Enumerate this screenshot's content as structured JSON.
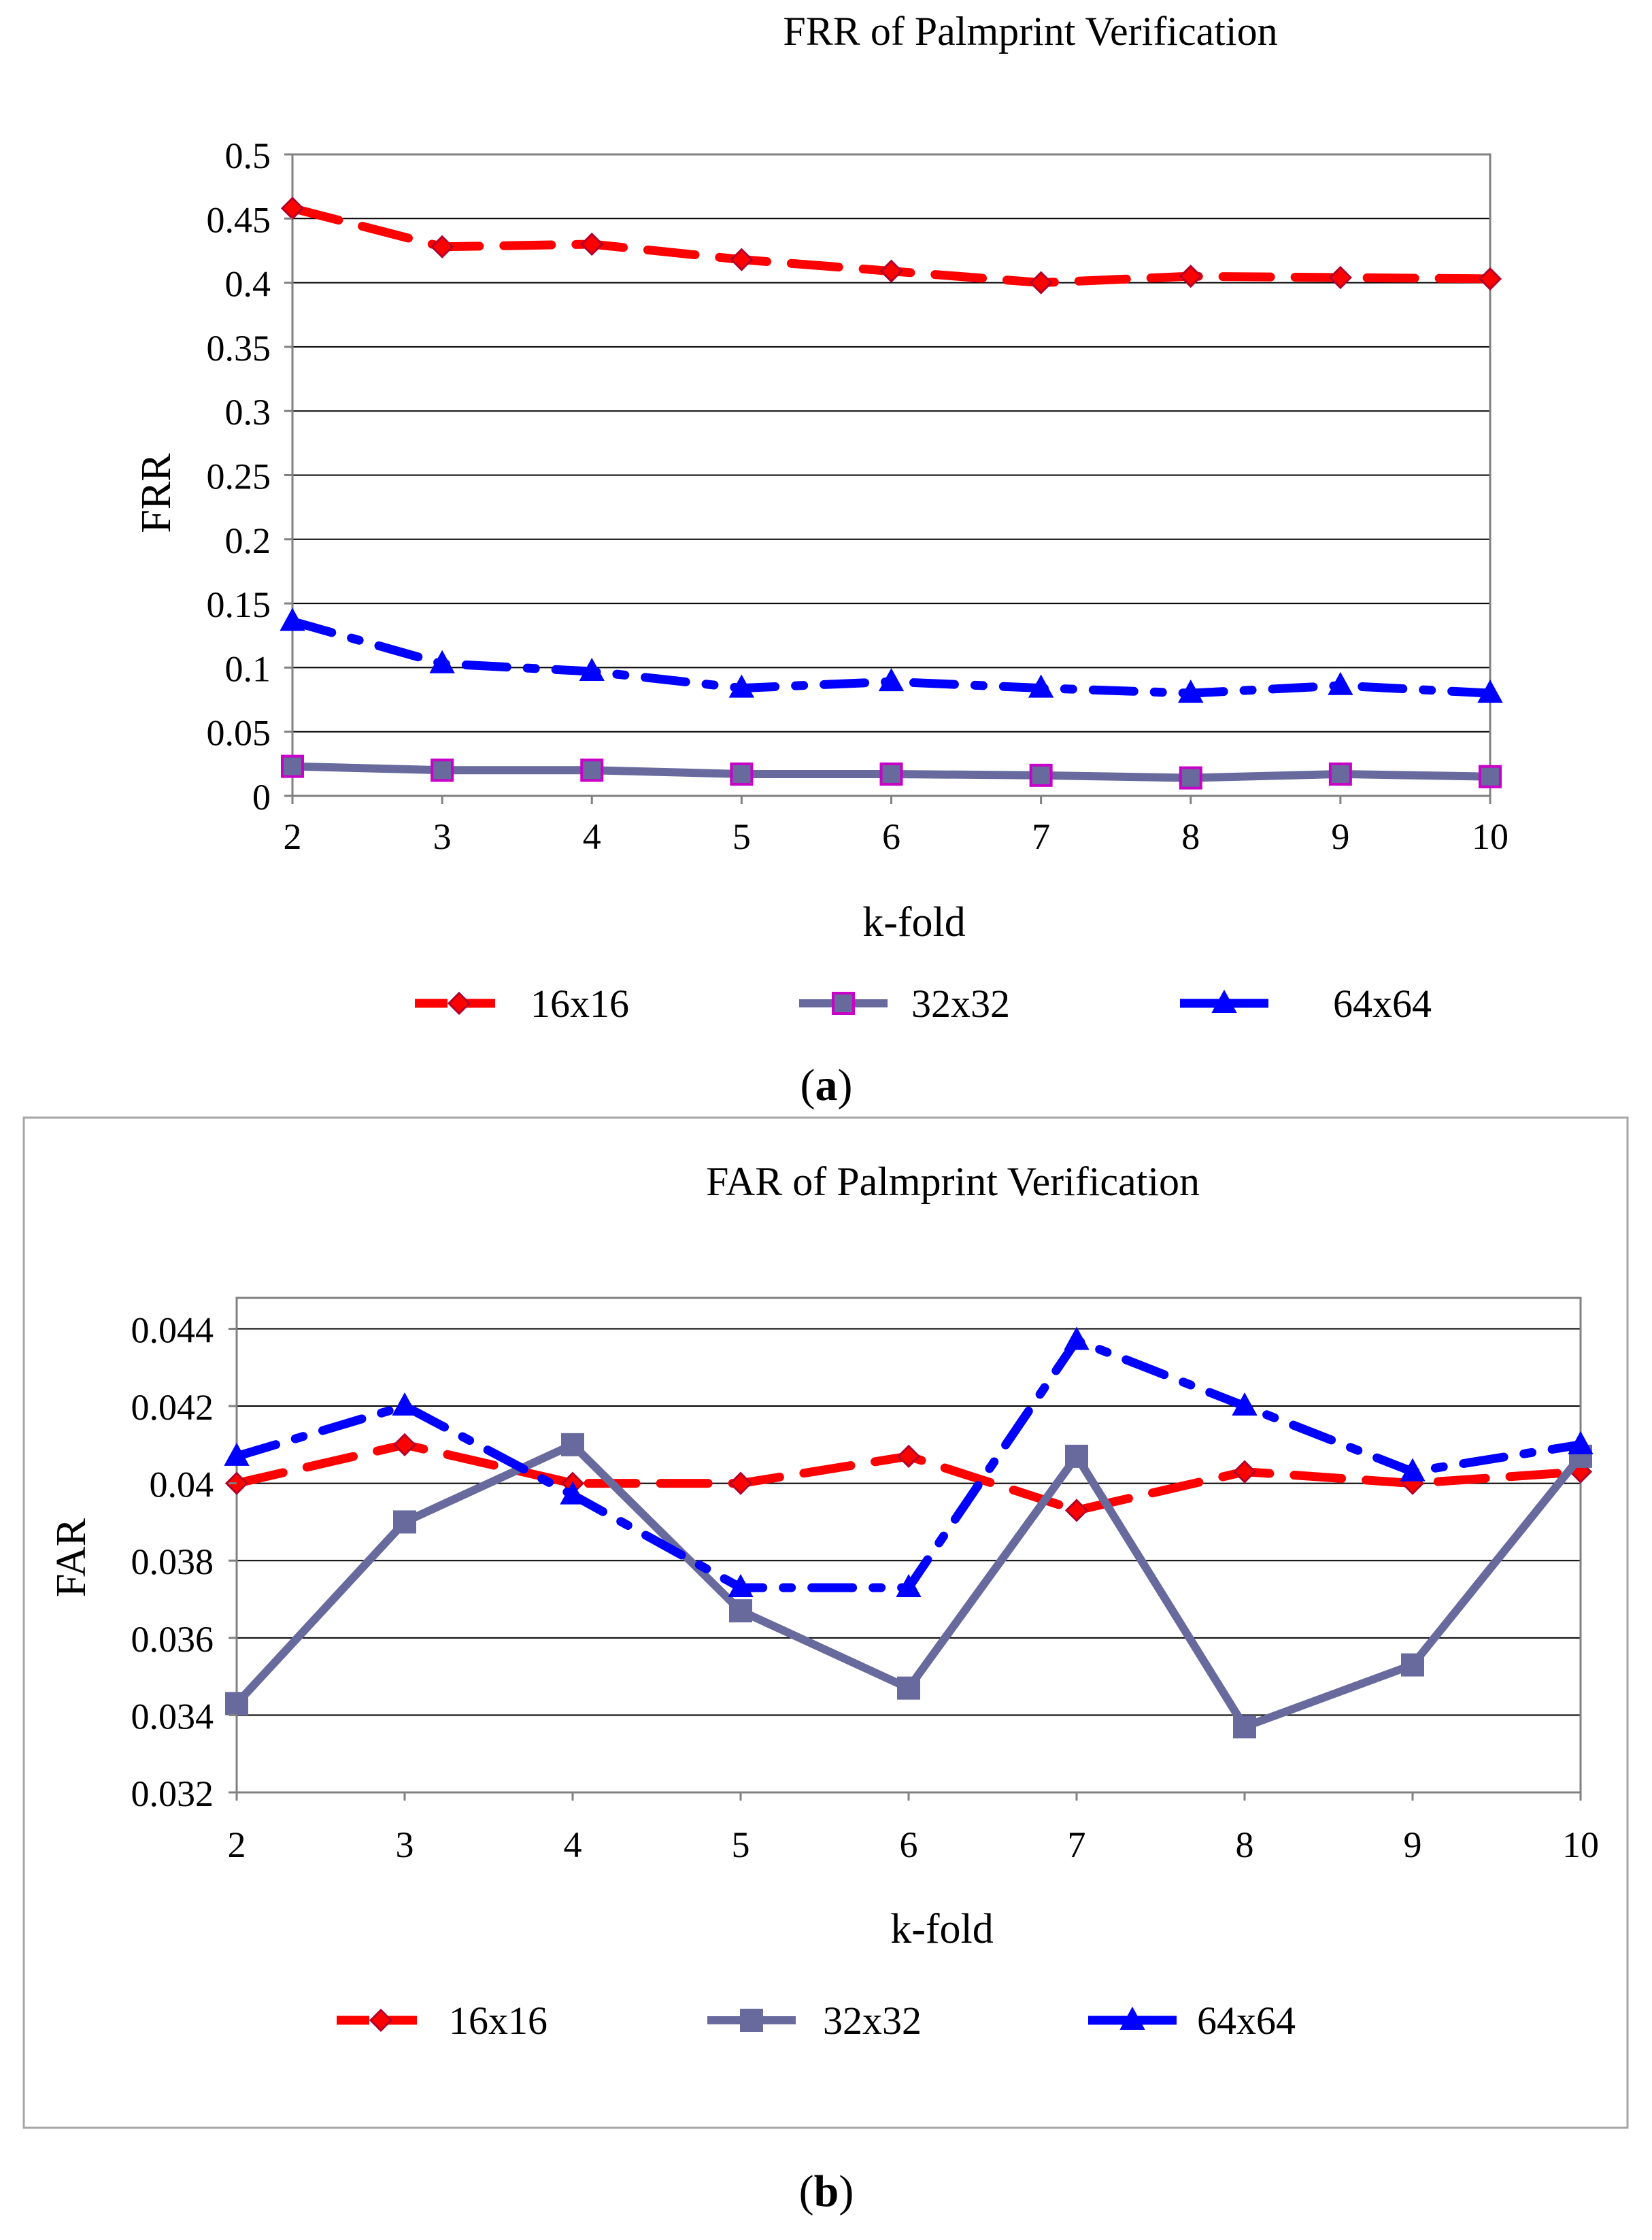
{
  "colors": {
    "s16": "#ff0000",
    "s16_marker": "#b2002a",
    "s32": "#686a9e",
    "s32_marker": "#c800c8",
    "s64": "#0000ff",
    "grid": "#000000",
    "frame": "#808080",
    "border_b": "#a6a6a6"
  },
  "chart_data": [
    {
      "type": "line",
      "title": "FRR of Palmprint Verification",
      "xlabel": "k-fold",
      "ylabel": "FRR",
      "caption_open": "(",
      "caption_letter": "a",
      "caption_close": ")",
      "x": [
        2,
        3,
        4,
        5,
        6,
        7,
        8,
        9,
        10
      ],
      "x_tick_labels": [
        "2",
        "3",
        "4",
        "5",
        "6",
        "7",
        "8",
        "9",
        "10"
      ],
      "ylim": [
        0,
        0.5
      ],
      "y_ticks": [
        0,
        0.05,
        0.1,
        0.15,
        0.2,
        0.25,
        0.3,
        0.35,
        0.4,
        0.45,
        0.5
      ],
      "y_tick_labels": [
        "0",
        "0.05",
        "0.1",
        "0.15",
        "0.2",
        "0.25",
        "0.3",
        "0.35",
        "0.4",
        "0.45",
        "0.5"
      ],
      "grid": true,
      "legend_position": "bottom",
      "series": [
        {
          "name": "16x16",
          "style": "dashed",
          "marker": "diamond",
          "values": [
            0.458,
            0.428,
            0.43,
            0.418,
            0.409,
            0.4,
            0.405,
            0.404,
            0.403
          ]
        },
        {
          "name": "32x32",
          "style": "solid",
          "marker": "square",
          "values": [
            0.023,
            0.02,
            0.02,
            0.017,
            0.017,
            0.016,
            0.014,
            0.017,
            0.015
          ]
        },
        {
          "name": "64x64",
          "style": "dashdot",
          "marker": "triangle",
          "values": [
            0.136,
            0.103,
            0.097,
            0.084,
            0.089,
            0.084,
            0.08,
            0.086,
            0.08
          ]
        }
      ]
    },
    {
      "type": "line",
      "title": "FAR of Palmprint Verification",
      "xlabel": "k-fold",
      "ylabel": "FAR",
      "caption_open": "(",
      "caption_letter": "b",
      "caption_close": ")",
      "x": [
        2,
        3,
        4,
        5,
        6,
        7,
        8,
        9,
        10
      ],
      "x_tick_labels": [
        "2",
        "3",
        "4",
        "5",
        "6",
        "7",
        "8",
        "9",
        "10"
      ],
      "ylim": [
        0.032,
        0.0448
      ],
      "y_ticks": [
        0.032,
        0.034,
        0.036,
        0.038,
        0.04,
        0.042,
        0.044
      ],
      "y_tick_labels": [
        "0.032",
        "0.034",
        "0.036",
        "0.038",
        "0.04",
        "0.042",
        "0.044"
      ],
      "grid": true,
      "legend_position": "bottom",
      "series": [
        {
          "name": "16x16",
          "style": "dashed",
          "marker": "diamond",
          "values": [
            0.04,
            0.041,
            0.04,
            0.04,
            0.0407,
            0.0393,
            0.0403,
            0.04,
            0.0403
          ]
        },
        {
          "name": "32x32",
          "style": "solid",
          "marker": "square",
          "values": [
            0.0343,
            0.039,
            0.041,
            0.0367,
            0.0347,
            0.0407,
            0.0337,
            0.0353,
            0.0407
          ]
        },
        {
          "name": "64x64",
          "style": "dashdot",
          "marker": "triangle",
          "values": [
            0.0407,
            0.042,
            0.0397,
            0.0373,
            0.0373,
            0.0437,
            0.042,
            0.0403,
            0.041
          ]
        }
      ]
    }
  ]
}
